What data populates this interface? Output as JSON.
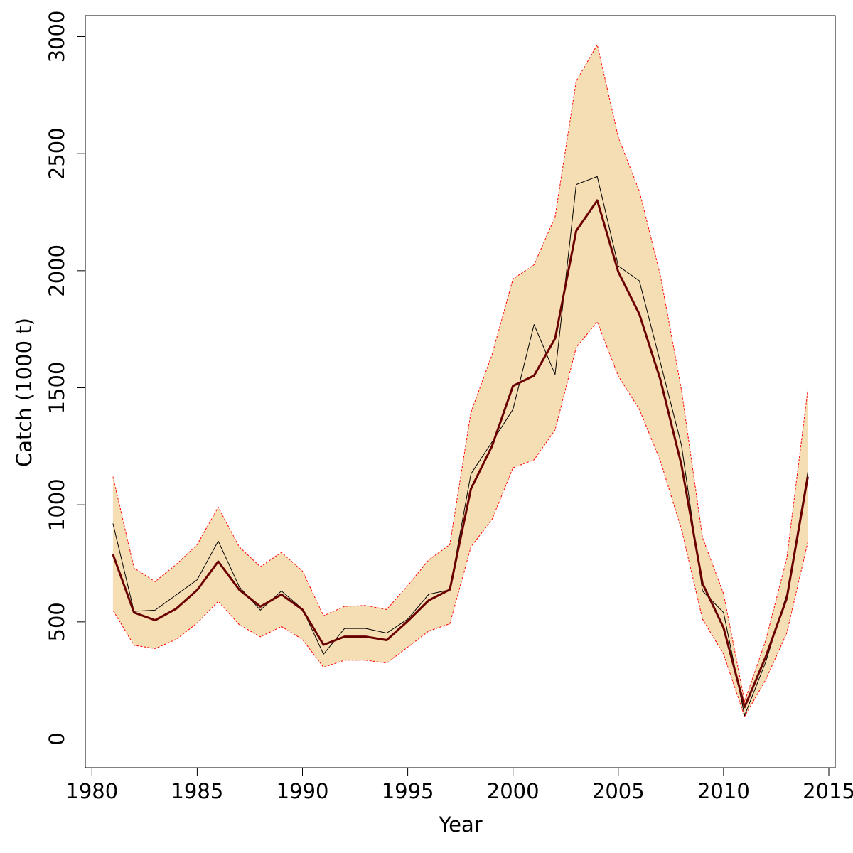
{
  "chart_data": {
    "type": "line",
    "title": "",
    "xlabel": "Year",
    "ylabel": "Catch (1000 t)",
    "xlim": [
      1980,
      2015
    ],
    "ylim": [
      0,
      3000
    ],
    "xticks": [
      1980,
      1985,
      1990,
      1995,
      2000,
      2005,
      2010,
      2015
    ],
    "yticks": [
      0,
      500,
      1000,
      1500,
      2000,
      2500,
      3000
    ],
    "grid": false,
    "legend": "none",
    "x": [
      1981,
      1982,
      1983,
      1984,
      1985,
      1986,
      1987,
      1988,
      1989,
      1990,
      1991,
      1992,
      1993,
      1994,
      1995,
      1996,
      1997,
      1998,
      1999,
      2000,
      2001,
      2002,
      2003,
      2004,
      2005,
      2006,
      2007,
      2008,
      2009,
      2010,
      2011,
      2012,
      2013,
      2014
    ],
    "band": {
      "upper": [
        1120,
        730,
        672,
        745,
        830,
        990,
        820,
        735,
        797,
        717,
        526,
        566,
        570,
        553,
        655,
        765,
        830,
        1395,
        1640,
        1965,
        2025,
        2230,
        2810,
        2965,
        2570,
        2340,
        1980,
        1490,
        860,
        620,
        160,
        420,
        770,
        1490
      ],
      "lower": [
        550,
        400,
        386,
        425,
        495,
        588,
        488,
        436,
        480,
        425,
        306,
        336,
        336,
        324,
        392,
        461,
        492,
        820,
        937,
        1158,
        1192,
        1320,
        1672,
        1782,
        1550,
        1408,
        1188,
        895,
        512,
        362,
        96,
        252,
        452,
        840
      ],
      "fill": "#F5DEB3",
      "edge_color": "#FF0000"
    },
    "series": [
      {
        "values": [
          920,
          545,
          550,
          615,
          680,
          845,
          650,
          550,
          632,
          555,
          362,
          472,
          472,
          452,
          512,
          618,
          637,
          1132,
          1268,
          1408,
          1770,
          1557,
          2368,
          2402,
          2020,
          1957,
          1608,
          1255,
          632,
          540,
          100,
          328,
          617,
          1140
        ],
        "color": "#000000"
      },
      {
        "values": [
          788,
          540,
          507,
          556,
          636,
          758,
          637,
          565,
          617,
          552,
          402,
          437,
          437,
          422,
          503,
          592,
          638,
          1068,
          1250,
          1508,
          1552,
          1710,
          2170,
          2300,
          1995,
          1815,
          1535,
          1170,
          664,
          475,
          136,
          350,
          600,
          1120
        ],
        "color": "#6B0000"
      }
    ]
  }
}
